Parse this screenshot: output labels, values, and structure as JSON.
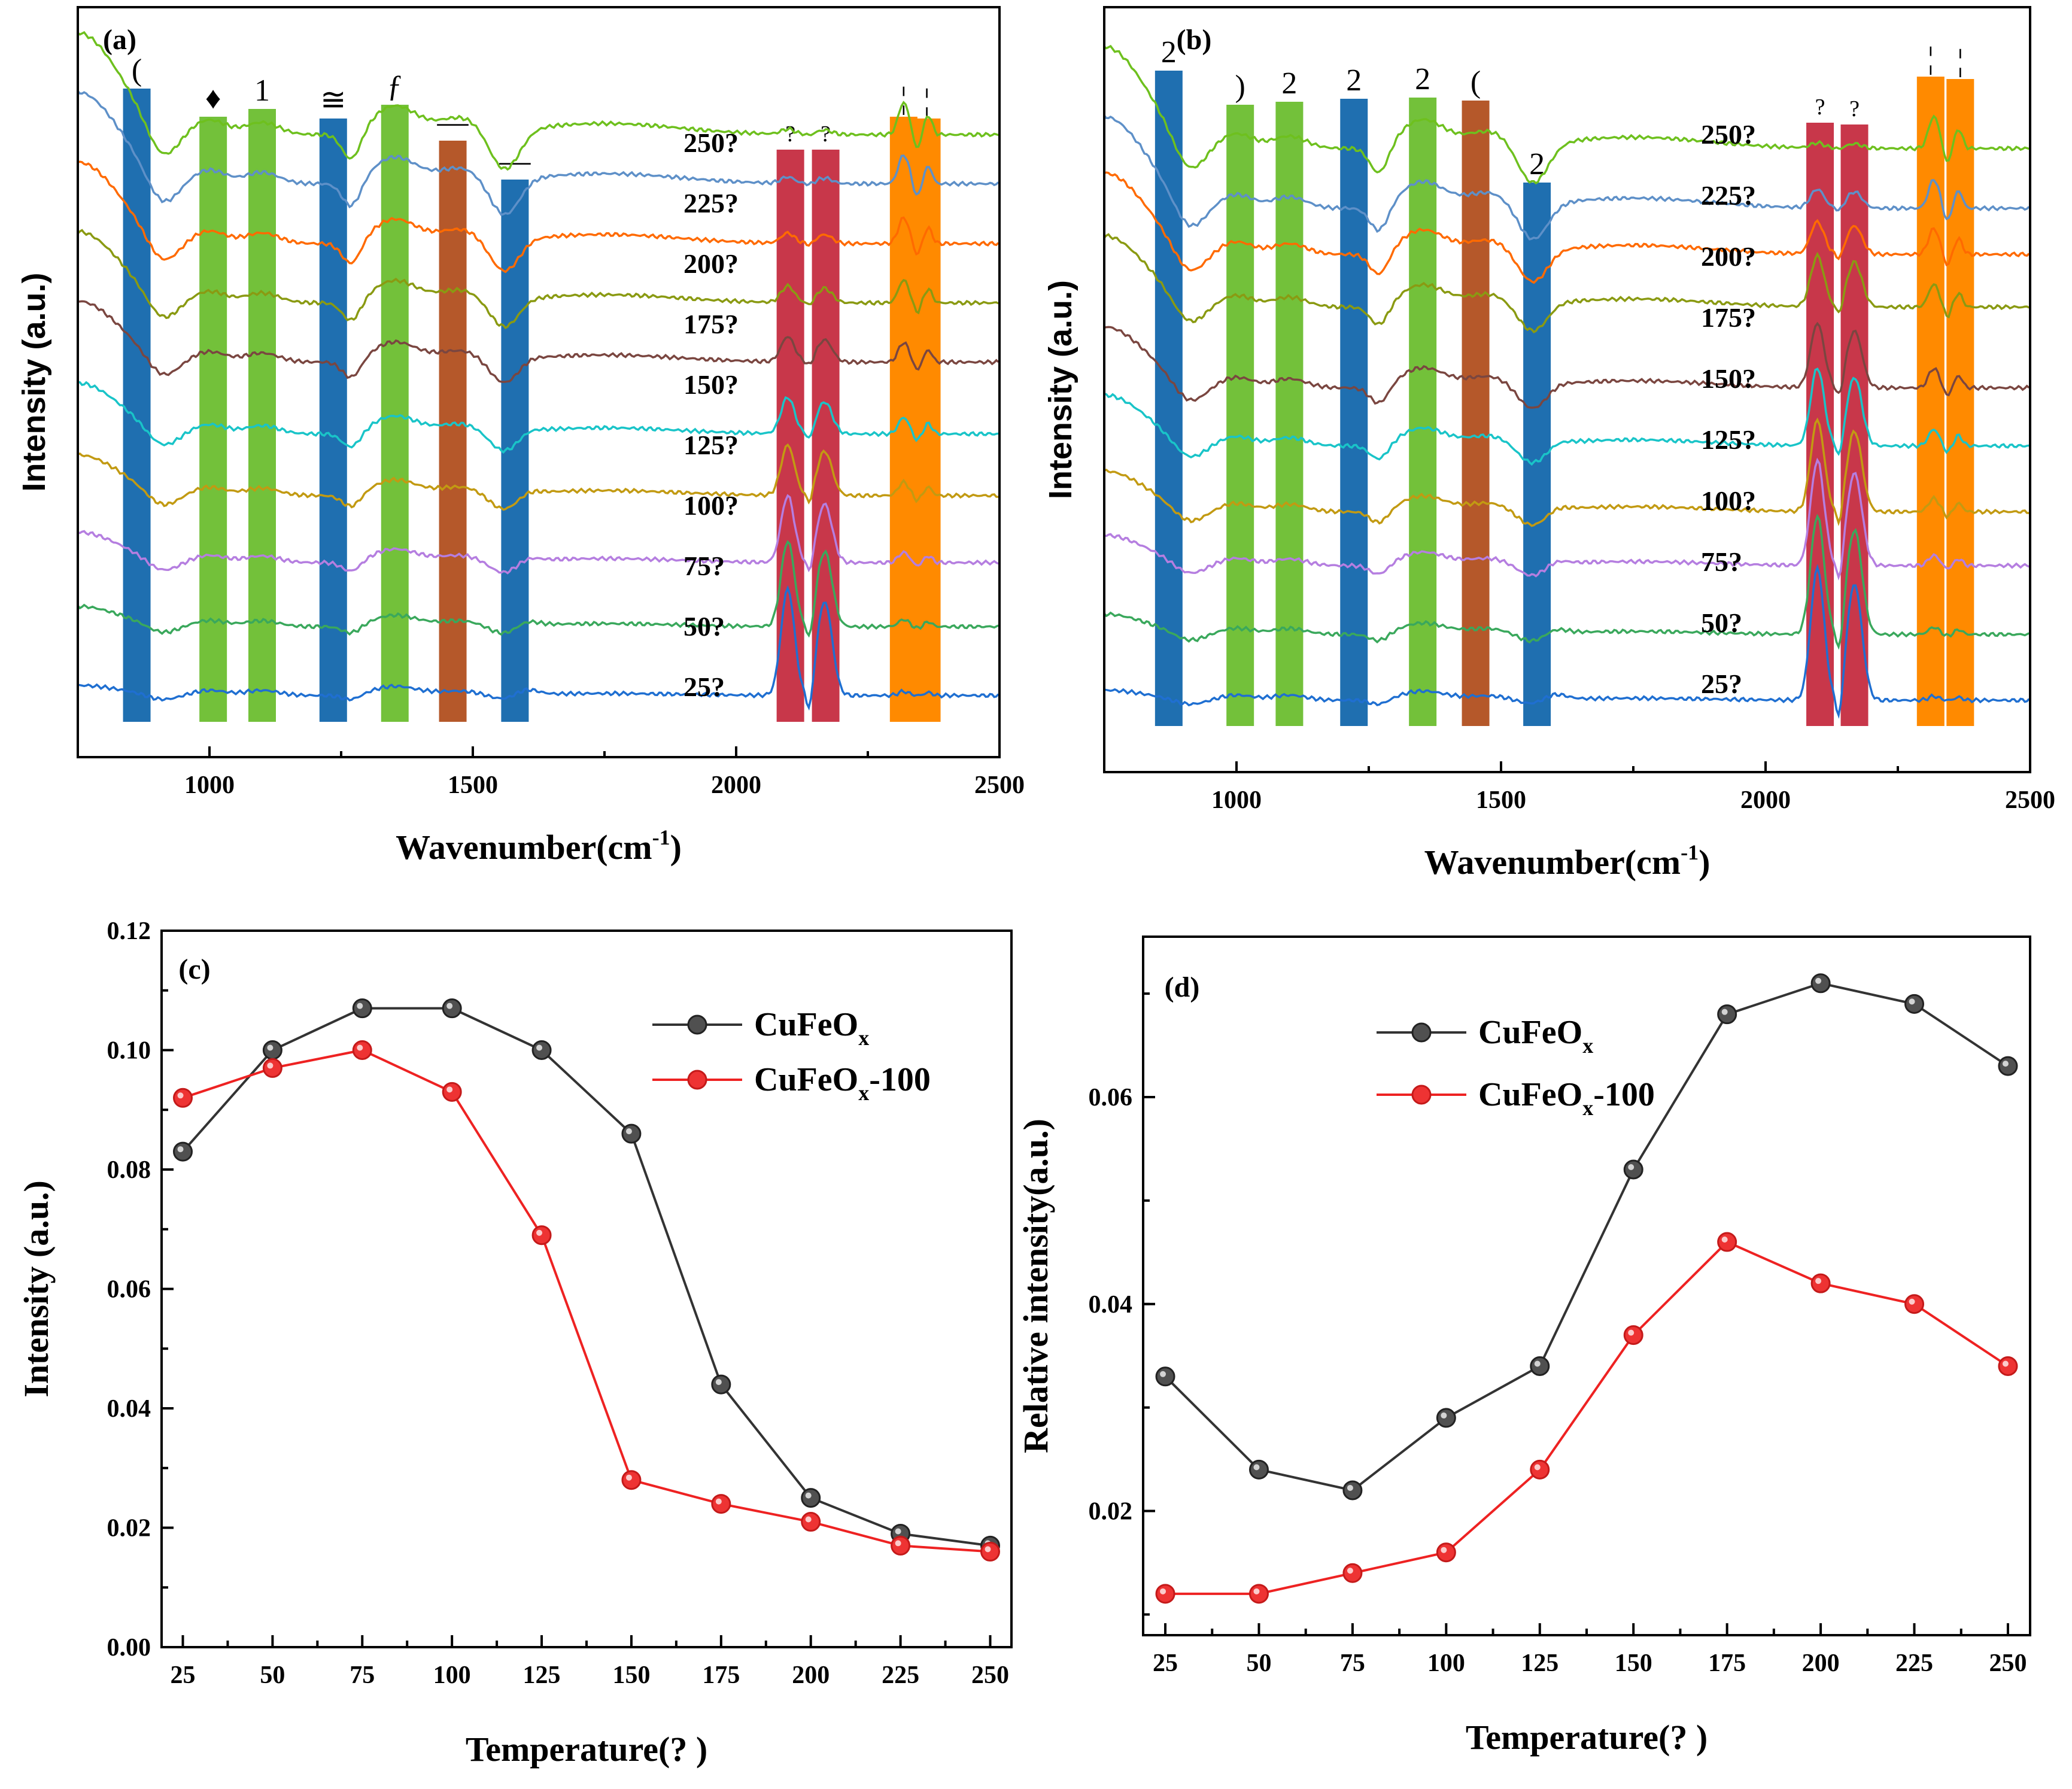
{
  "colors": {
    "curves": [
      "#1f6fd1",
      "#3aa85c",
      "#b57ee0",
      "#c29a12",
      "#19c4c8",
      "#7a4640",
      "#8a9a12",
      "#ff6a00",
      "#5e90c8",
      "#6ec01e"
    ],
    "band_blue": "#1f6fb0",
    "band_green": "#73c13a",
    "band_brown": "#b5582a",
    "band_red": "#c8374a",
    "band_orange": "#ff8a00",
    "series_black": "#505050",
    "series_red": "#ee3333"
  },
  "chart_data": [
    {
      "id": "a",
      "type": "line",
      "panel_label": "(a)",
      "xlabel": "Wavenumber(cm",
      "xlabel_sup": "-1",
      "xlabel_end": ")",
      "ylabel": "Intensity (a.u.)",
      "xlim": [
        750,
        2500
      ],
      "xticks": [
        1000,
        1500,
        2000,
        2500
      ],
      "series_labels": [
        "25?",
        "50?",
        "75?",
        "100?",
        "125?",
        "150?",
        "175?",
        "200?",
        "225?",
        "250?"
      ],
      "bands": [
        {
          "center": 862,
          "color": "blue",
          "label": "("
        },
        {
          "center": 1007,
          "color": "green",
          "label": "♦"
        },
        {
          "center": 1100,
          "color": "green",
          "label": "1"
        },
        {
          "center": 1235,
          "color": "blue",
          "label": "≅"
        },
        {
          "center": 1352,
          "color": "green",
          "label": "ƒ"
        },
        {
          "center": 1462,
          "color": "brown",
          "label": "—"
        },
        {
          "center": 1580,
          "color": "blue",
          "label": "—"
        },
        {
          "center": 2103,
          "color": "red",
          "label": "?"
        },
        {
          "center": 2170,
          "color": "red",
          "label": "?"
        },
        {
          "center": 2318,
          "color": "orange",
          "label": "¦"
        },
        {
          "center": 2362,
          "color": "orange",
          "label": "¦"
        }
      ]
    },
    {
      "id": "b",
      "type": "line",
      "panel_label": "(b)",
      "xlabel": "Wavenumber(cm",
      "xlabel_sup": "-1",
      "xlabel_end": ")",
      "ylabel": "Intensity (a.u.)",
      "xlim": [
        750,
        2500
      ],
      "xticks": [
        1000,
        1500,
        2000,
        2500
      ],
      "series_labels": [
        "25?",
        "50?",
        "75?",
        "100?",
        "125?",
        "150?",
        "175?",
        "200?",
        "225?",
        "250?"
      ],
      "bands": [
        {
          "center": 872,
          "color": "blue",
          "label": "2"
        },
        {
          "center": 1007,
          "color": "green",
          "label": ")"
        },
        {
          "center": 1100,
          "color": "green",
          "label": "2"
        },
        {
          "center": 1222,
          "color": "blue",
          "label": "2"
        },
        {
          "center": 1352,
          "color": "green",
          "label": "2"
        },
        {
          "center": 1452,
          "color": "brown",
          "label": "("
        },
        {
          "center": 1568,
          "color": "blue",
          "label": "2"
        },
        {
          "center": 2103,
          "color": "red",
          "label": "?"
        },
        {
          "center": 2168,
          "color": "red",
          "label": "?"
        },
        {
          "center": 2312,
          "color": "orange",
          "label": "¦"
        },
        {
          "center": 2368,
          "color": "orange",
          "label": "¦"
        }
      ]
    },
    {
      "id": "c",
      "type": "line",
      "panel_label": "(c)",
      "xlabel": "Temperature(?  )",
      "ylabel": "Intensity (a.u.)",
      "ylim": [
        0.0,
        0.12
      ],
      "yticks": [
        "0.00",
        "0.02",
        "0.04",
        "0.06",
        "0.08",
        "0.10",
        "0.12"
      ],
      "categories": [
        25,
        50,
        75,
        100,
        125,
        150,
        175,
        200,
        225,
        250
      ],
      "series": [
        {
          "name": "CuFeO",
          "name_sub": "x",
          "color": "black",
          "values": [
            0.083,
            0.1,
            0.107,
            0.107,
            0.1,
            0.086,
            0.044,
            0.025,
            0.019,
            0.017
          ]
        },
        {
          "name": "CuFeO",
          "name_sub": "x",
          "name_suffix": "-100",
          "color": "red",
          "values": [
            0.092,
            0.097,
            0.1,
            0.093,
            0.069,
            0.028,
            0.024,
            0.021,
            0.017,
            0.016
          ]
        }
      ]
    },
    {
      "id": "d",
      "type": "line",
      "panel_label": "(d)",
      "xlabel": "Temperature(?  )",
      "ylabel": "Relative intensity(a.u.)",
      "ylim": [
        0.008,
        0.0755
      ],
      "yticks": [
        "0.02",
        "0.04",
        "0.06"
      ],
      "categories": [
        25,
        50,
        75,
        100,
        125,
        150,
        175,
        200,
        225,
        250
      ],
      "series": [
        {
          "name": "CuFeO",
          "name_sub": "x",
          "color": "black",
          "values": [
            0.033,
            0.024,
            0.022,
            0.029,
            0.034,
            0.053,
            0.068,
            0.071,
            0.069,
            0.063
          ]
        },
        {
          "name": "CuFeO",
          "name_sub": "x",
          "name_suffix": "-100",
          "color": "red",
          "values": [
            0.012,
            0.012,
            0.014,
            0.016,
            0.024,
            0.037,
            0.046,
            0.042,
            0.04,
            0.034
          ]
        }
      ]
    }
  ]
}
